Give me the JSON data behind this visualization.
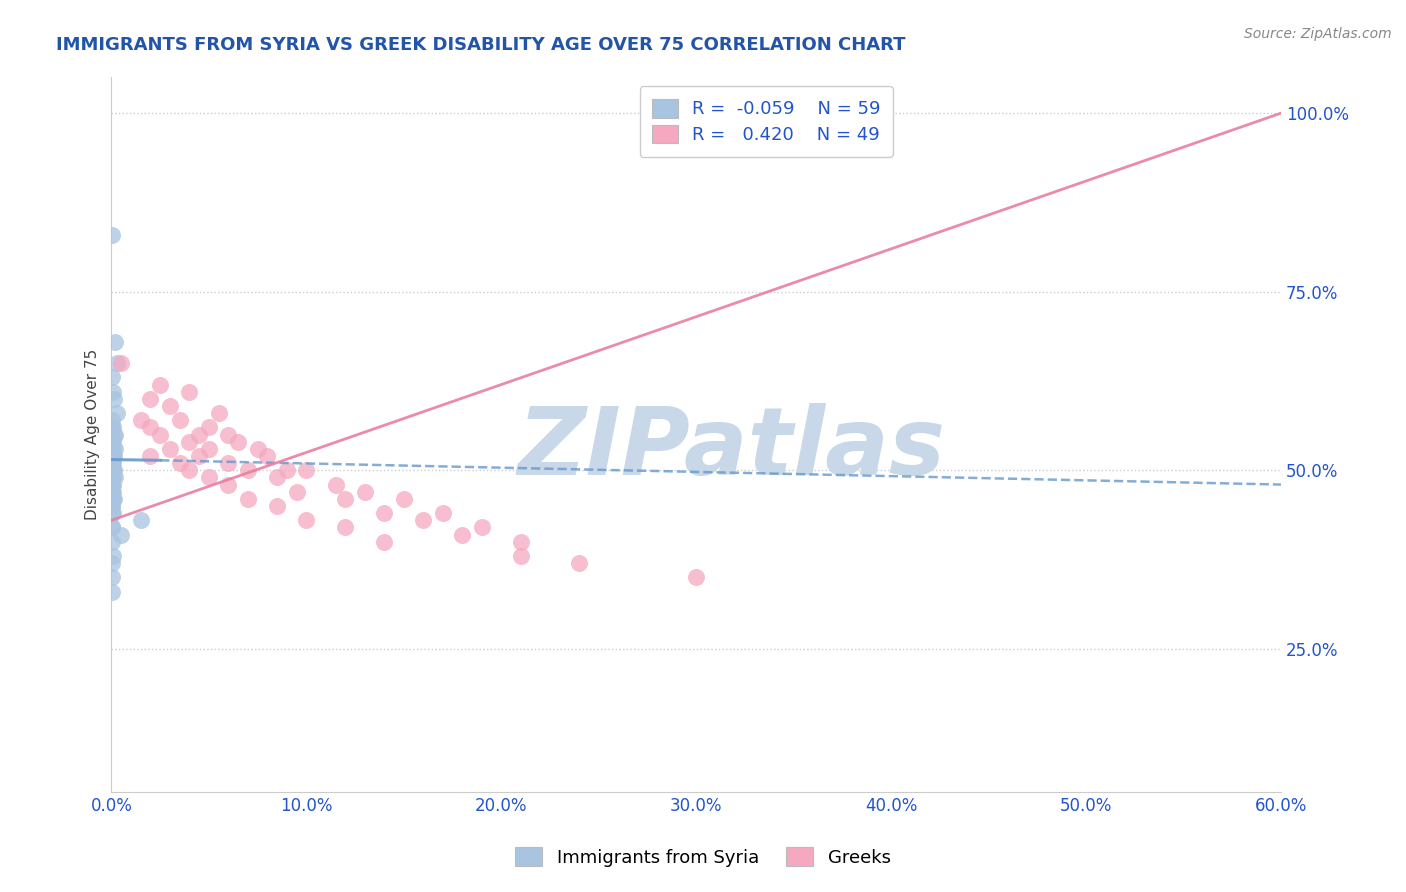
{
  "title": "IMMIGRANTS FROM SYRIA VS GREEK DISABILITY AGE OVER 75 CORRELATION CHART",
  "source": "Source: ZipAtlas.com",
  "ylabel": "Disability Age Over 75",
  "xlim": [
    0.0,
    60.0
  ],
  "ylim": [
    5.0,
    105.0
  ],
  "xticks": [
    0.0,
    10.0,
    20.0,
    30.0,
    40.0,
    50.0,
    60.0
  ],
  "xtick_labels": [
    "0.0%",
    "10.0%",
    "20.0%",
    "30.0%",
    "40.0%",
    "50.0%",
    "60.0%"
  ],
  "yticks": [
    25.0,
    50.0,
    75.0,
    100.0
  ],
  "ytick_labels": [
    "25.0%",
    "50.0%",
    "75.0%",
    "100.0%"
  ],
  "legend_labels": [
    "Immigrants from Syria",
    "Greeks"
  ],
  "blue_r": "-0.059",
  "blue_n": "59",
  "pink_r": "0.420",
  "pink_n": "49",
  "blue_color": "#a8c4e0",
  "pink_color": "#f5a8c0",
  "blue_line_color": "#6699cc",
  "pink_line_color": "#e87fa0",
  "title_color": "#2255aa",
  "source_color": "#888888",
  "watermark_color": "#c8d8e8",
  "watermark_text": "ZIPatlas",
  "legend_r_color": "#2255cc",
  "blue_scatter_x": [
    0.05,
    0.2,
    0.3,
    0.05,
    0.1,
    0.15,
    0.3,
    0.05,
    0.1,
    0.05,
    0.15,
    0.2,
    0.1,
    0.05,
    0.1,
    0.05,
    0.2,
    0.15,
    0.05,
    0.1,
    0.05,
    0.05,
    0.05,
    0.1,
    0.05,
    0.1,
    0.05,
    0.05,
    0.15,
    0.05,
    0.05,
    0.1,
    0.05,
    0.1,
    0.05,
    0.05,
    0.2,
    0.1,
    0.05,
    0.05,
    0.05,
    0.1,
    0.05,
    0.05,
    0.1,
    0.15,
    0.05,
    0.05,
    0.05,
    0.1,
    1.5,
    0.05,
    0.05,
    0.5,
    0.05,
    0.1,
    0.05,
    0.05,
    0.05
  ],
  "blue_scatter_y": [
    83,
    68,
    65,
    63,
    61,
    60,
    58,
    57,
    56,
    56,
    55,
    55,
    54,
    54,
    53,
    53,
    53,
    52,
    52,
    52,
    51,
    51,
    51,
    51,
    51,
    50,
    50,
    50,
    50,
    50,
    50,
    50,
    50,
    49,
    49,
    49,
    49,
    48,
    48,
    48,
    47,
    47,
    46,
    46,
    46,
    46,
    45,
    45,
    44,
    44,
    43,
    42,
    42,
    41,
    40,
    38,
    37,
    35,
    33
  ],
  "pink_scatter_x": [
    0.5,
    2.5,
    4.0,
    2.0,
    3.0,
    5.5,
    1.5,
    3.5,
    5.0,
    2.0,
    4.5,
    6.0,
    2.5,
    4.0,
    6.5,
    3.0,
    5.0,
    7.5,
    2.0,
    4.5,
    8.0,
    3.5,
    6.0,
    9.0,
    4.0,
    7.0,
    10.0,
    5.0,
    8.5,
    11.5,
    6.0,
    9.5,
    13.0,
    7.0,
    12.0,
    15.0,
    8.5,
    14.0,
    17.0,
    10.0,
    16.0,
    19.0,
    12.0,
    18.0,
    21.0,
    14.0,
    21.0,
    24.0,
    30.0
  ],
  "pink_scatter_y": [
    65,
    62,
    61,
    60,
    59,
    58,
    57,
    57,
    56,
    56,
    55,
    55,
    55,
    54,
    54,
    53,
    53,
    53,
    52,
    52,
    52,
    51,
    51,
    50,
    50,
    50,
    50,
    49,
    49,
    48,
    48,
    47,
    47,
    46,
    46,
    46,
    45,
    44,
    44,
    43,
    43,
    42,
    42,
    41,
    40,
    40,
    38,
    37,
    35
  ],
  "blue_trend_x": [
    0.0,
    60.0
  ],
  "blue_trend_y": [
    51.5,
    48.0
  ],
  "pink_trend_x": [
    0.0,
    60.0
  ],
  "pink_trend_y": [
    43.0,
    100.0
  ]
}
